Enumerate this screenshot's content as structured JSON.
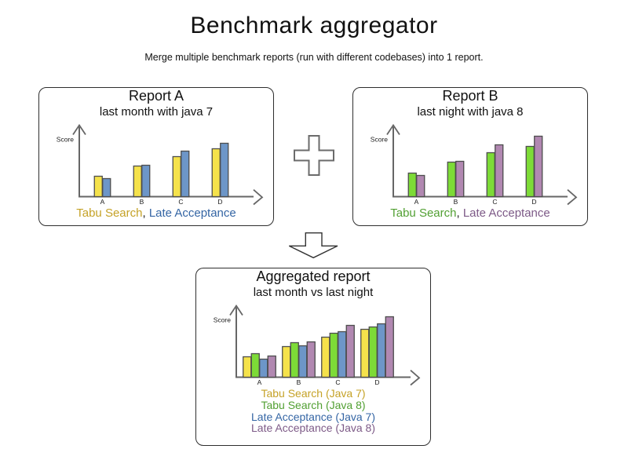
{
  "page": {
    "title": "Benchmark aggregator",
    "subtitle": "Merge multiple benchmark reports (run with different codebases) into 1 report."
  },
  "icons": {
    "plus": "plus-outline-cross",
    "merge_arrow": "arrow-down-outline"
  },
  "colors": {
    "axis": "#666666",
    "bar_border": "#4d4d4d",
    "plain_text": "#1a1a1a",
    "tabu_java7_fill": "#F5E24B",
    "tabu_java8_fill": "#7DDB37",
    "late_java7_fill": "#6D96C8",
    "late_java8_fill": "#B188B1",
    "tabu_java7_text": "#C5A227",
    "tabu_java8_text": "#52A033",
    "late_java7_text": "#3465A4",
    "late_java8_text": "#7D5A87"
  },
  "panels": [
    {
      "id": "report-a",
      "title": "Report A",
      "subtitle": "last month with java 7",
      "legend": {
        "style": "inline",
        "separator": ", ",
        "items": [
          {
            "label": "Tabu Search",
            "color": "#C5A227"
          },
          {
            "label": "Late Acceptance",
            "color": "#3465A4"
          }
        ]
      }
    },
    {
      "id": "report-b",
      "title": "Report B",
      "subtitle": "last night with java 8",
      "legend": {
        "style": "inline",
        "separator": ", ",
        "items": [
          {
            "label": "Tabu Search",
            "color": "#52A033"
          },
          {
            "label": "Late Acceptance",
            "color": "#7D5A87"
          }
        ]
      }
    },
    {
      "id": "aggregated",
      "title": "Aggregated report",
      "subtitle": "last month vs last night",
      "legend": {
        "style": "stacked",
        "separator": "",
        "items": [
          {
            "label": "Tabu Search (Java 7)",
            "color": "#C5A227"
          },
          {
            "label": "Tabu Search (Java 8)",
            "color": "#52A033"
          },
          {
            "label": "Late Acceptance (Java 7)",
            "color": "#3465A4"
          },
          {
            "label": "Late Acceptance (Java 8)",
            "color": "#7D5A87"
          }
        ]
      }
    }
  ],
  "chart_data": [
    {
      "type": "bar",
      "title": "Report A",
      "subtitle": "last month with java 7",
      "xlabel": "",
      "ylabel": "Score",
      "categories": [
        "A",
        "B",
        "C",
        "D"
      ],
      "series": [
        {
          "name": "Tabu Search",
          "color": "#F5E24B",
          "values": [
            26,
            39,
            51,
            61
          ]
        },
        {
          "name": "Late Acceptance",
          "color": "#6D96C8",
          "values": [
            23,
            40,
            58,
            68
          ]
        }
      ],
      "ylim": [
        0,
        100
      ],
      "grid": false,
      "legend_position": "below"
    },
    {
      "type": "bar",
      "title": "Report B",
      "subtitle": "last night with java 8",
      "xlabel": "",
      "ylabel": "Score",
      "categories": [
        "A",
        "B",
        "C",
        "D"
      ],
      "series": [
        {
          "name": "Tabu Search",
          "color": "#7DDB37",
          "values": [
            30,
            44,
            56,
            64
          ]
        },
        {
          "name": "Late Acceptance",
          "color": "#B188B1",
          "values": [
            27,
            45,
            66,
            77
          ]
        }
      ],
      "ylim": [
        0,
        100
      ],
      "grid": false,
      "legend_position": "below"
    },
    {
      "type": "bar",
      "title": "Aggregated report",
      "subtitle": "last month vs last night",
      "xlabel": "",
      "ylabel": "Score",
      "categories": [
        "A",
        "B",
        "C",
        "D"
      ],
      "series": [
        {
          "name": "Tabu Search (Java 7)",
          "color": "#F5E24B",
          "values": [
            26,
            39,
            51,
            61
          ]
        },
        {
          "name": "Tabu Search (Java 8)",
          "color": "#7DDB37",
          "values": [
            30,
            44,
            56,
            64
          ]
        },
        {
          "name": "Late Acceptance (Java 7)",
          "color": "#6D96C8",
          "values": [
            23,
            40,
            58,
            68
          ]
        },
        {
          "name": "Late Acceptance (Java 8)",
          "color": "#B188B1",
          "values": [
            27,
            45,
            66,
            77
          ]
        }
      ],
      "ylim": [
        0,
        100
      ],
      "grid": false,
      "legend_position": "below"
    }
  ]
}
